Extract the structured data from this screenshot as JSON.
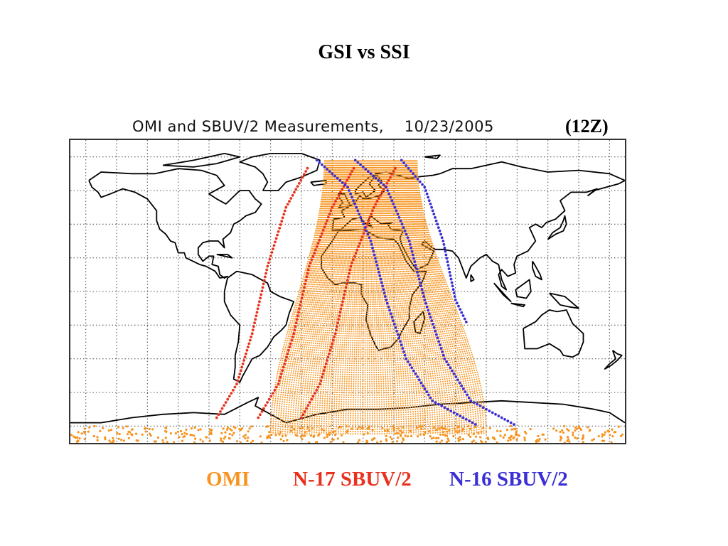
{
  "slide": {
    "title": "GSI vs SSI"
  },
  "map": {
    "title": "OMI and SBUV/2 Measurements,    10/23/2005",
    "time_tag": "(12Z)",
    "projection": "cylindrical-equidistant",
    "lon_range": [
      -180,
      180
    ],
    "lat_range": [
      -90,
      90
    ],
    "grid": true,
    "grid_style": "dotted",
    "coastline_color": "#000000"
  },
  "legend": {
    "items": [
      {
        "id": "omi",
        "label": "OMI",
        "color": "#f7931e"
      },
      {
        "id": "n17",
        "label": "N-17 SBUV/2",
        "color": "#e8321e"
      },
      {
        "id": "n16",
        "label": "N-16 SBUV/2",
        "color": "#3a2fd6"
      }
    ]
  },
  "tracks": {
    "omi_swath": {
      "color": "#f7931e",
      "north_lon_range": [
        -15,
        45
      ],
      "south_lon_range": [
        -50,
        90
      ],
      "lat_range": [
        -85,
        78
      ]
    },
    "n17": {
      "color": "#e8321e",
      "orbits": [
        {
          "points": [
            [
              -85,
              -75
            ],
            [
              -72,
              -55
            ],
            [
              -62,
              -25
            ],
            [
              -52,
              15
            ],
            [
              -40,
              50
            ],
            [
              -25,
              75
            ]
          ]
        },
        {
          "points": [
            [
              -58,
              -75
            ],
            [
              -45,
              -55
            ],
            [
              -35,
              -25
            ],
            [
              -25,
              15
            ],
            [
              -10,
              50
            ],
            [
              5,
              75
            ]
          ]
        },
        {
          "points": [
            [
              -30,
              -75
            ],
            [
              -18,
              -55
            ],
            [
              -8,
              -25
            ],
            [
              2,
              15
            ],
            [
              17,
              50
            ],
            [
              32,
              75
            ]
          ]
        }
      ]
    },
    "n16": {
      "color": "#3a2fd6",
      "orbits": [
        {
          "points": [
            [
              -20,
              78
            ],
            [
              0,
              62
            ],
            [
              15,
              30
            ],
            [
              25,
              -5
            ],
            [
              38,
              -40
            ],
            [
              55,
              -65
            ],
            [
              85,
              -80
            ]
          ]
        },
        {
          "points": [
            [
              5,
              78
            ],
            [
              25,
              62
            ],
            [
              40,
              30
            ],
            [
              50,
              -5
            ],
            [
              63,
              -40
            ],
            [
              80,
              -65
            ],
            [
              110,
              -80
            ]
          ]
        },
        {
          "points": [
            [
              35,
              78
            ],
            [
              50,
              62
            ],
            [
              62,
              30
            ],
            [
              70,
              -5
            ],
            [
              78,
              -20
            ]
          ]
        }
      ]
    }
  }
}
